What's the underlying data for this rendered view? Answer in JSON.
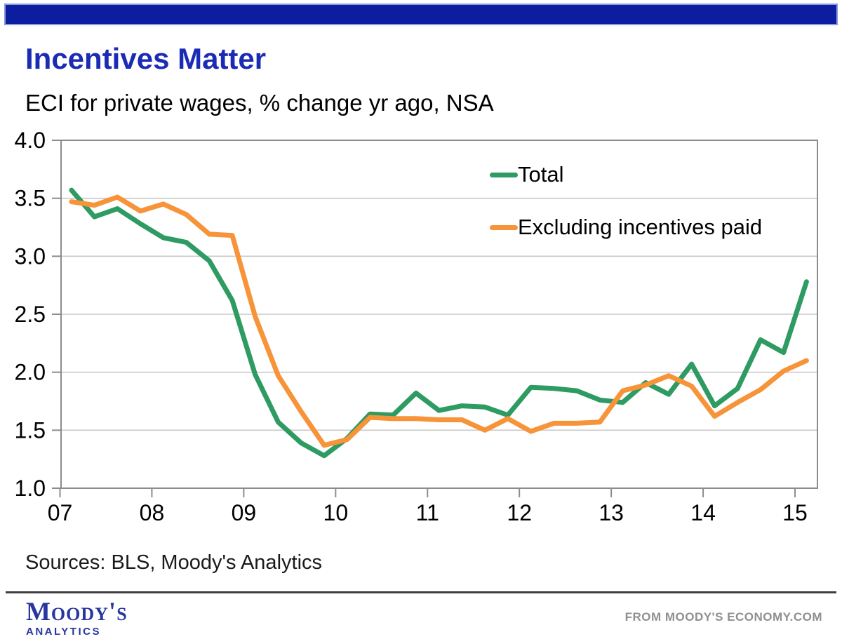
{
  "header": {
    "title": "Incentives Matter",
    "subtitle": "ECI for private wages, % change yr ago, NSA"
  },
  "legend": [
    {
      "label": "Total",
      "color": "#2E9B62"
    },
    {
      "label": "Excluding incentives paid",
      "color": "#F79339"
    }
  ],
  "footer": {
    "sources": "Sources: BLS, Moody's Analytics",
    "brand_name": "Moody's",
    "brand_sub": "ANALYTICS",
    "attribution": "FROM MOODY'S ECONOMY.COM"
  },
  "colors": {
    "top_bar": "#0d1da0",
    "title_blue": "#1b2bb4",
    "axis_gray": "#8c8c8c",
    "grid_gray": "#c9c9c9",
    "total_green": "#2E9B62",
    "excluding_orange": "#F79339"
  },
  "chart_data": {
    "type": "line",
    "title": "Incentives Matter",
    "subtitle": "ECI for private wages, % change yr ago, NSA",
    "x_unit": "quarter",
    "x_start": "2007Q1",
    "x_end": "2015Q1",
    "x_tick_labels": [
      "07",
      "08",
      "09",
      "10",
      "11",
      "12",
      "13",
      "14",
      "15"
    ],
    "ylim": [
      1.0,
      4.0
    ],
    "y_ticks": [
      4.0,
      3.5,
      3.0,
      2.5,
      2.0,
      1.5,
      1.0
    ],
    "grid": "horizontal",
    "legend_position": "inside-top-right",
    "series": [
      {
        "name": "Total",
        "color": "#2E9B62",
        "values": [
          3.57,
          3.34,
          3.41,
          3.28,
          3.16,
          3.12,
          2.96,
          2.62,
          1.98,
          1.57,
          1.39,
          1.28,
          1.43,
          1.64,
          1.63,
          1.82,
          1.67,
          1.71,
          1.7,
          1.63,
          1.87,
          1.86,
          1.84,
          1.76,
          1.74,
          1.91,
          1.81,
          2.07,
          1.71,
          1.86,
          2.28,
          2.17,
          2.78
        ]
      },
      {
        "name": "Excluding incentives paid",
        "color": "#F79339",
        "values": [
          3.47,
          3.44,
          3.51,
          3.39,
          3.45,
          3.36,
          3.19,
          3.18,
          2.48,
          1.97,
          1.66,
          1.37,
          1.42,
          1.61,
          1.6,
          1.6,
          1.59,
          1.59,
          1.5,
          1.6,
          1.49,
          1.56,
          1.56,
          1.57,
          1.84,
          1.89,
          1.97,
          1.88,
          1.62,
          1.74,
          1.85,
          2.01,
          2.1
        ]
      }
    ]
  }
}
